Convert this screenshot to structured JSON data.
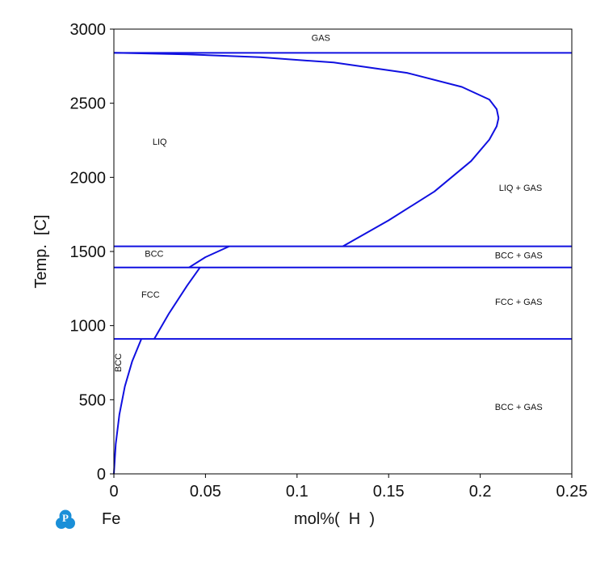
{
  "chart_data": {
    "type": "line",
    "title": "",
    "xlabel": "mol%(  H  )",
    "ylabel": "Temp.  [C]",
    "element_label": "Fe",
    "xlim": [
      0,
      0.25
    ],
    "ylim": [
      0,
      3000
    ],
    "x_ticks": [
      0,
      0.05,
      0.1,
      0.15,
      0.2,
      0.25
    ],
    "x_tick_labels": [
      "0",
      "0.05",
      "0.1",
      "0.15",
      "0.2",
      "0.25"
    ],
    "y_ticks": [
      0,
      500,
      1000,
      1500,
      2000,
      2500,
      3000
    ],
    "y_tick_labels": [
      "0",
      "500",
      "1000",
      "1500",
      "2000",
      "2500",
      "3000"
    ],
    "grid": false,
    "line_color": "#1010e0",
    "horizontal_lines": [
      {
        "name": "gas-boundary",
        "y": 2840
      },
      {
        "name": "bcc-liq-boundary",
        "y": 1535
      },
      {
        "name": "fcc-bcc-boundary",
        "y": 1392
      },
      {
        "name": "bcc-fcc-boundary",
        "y": 910
      }
    ],
    "series": [
      {
        "name": "liquidus-gas",
        "x": [
          0,
          0.04,
          0.08,
          0.12,
          0.16,
          0.19,
          0.205,
          0.209,
          0.21
        ],
        "y": [
          2840,
          2830,
          2810,
          2775,
          2705,
          2610,
          2525,
          2460,
          2400
        ]
      },
      {
        "name": "liquid-solubility",
        "x": [
          0.125,
          0.15,
          0.175,
          0.195,
          0.205,
          0.209,
          0.21
        ],
        "y": [
          1535,
          1710,
          1905,
          2110,
          2255,
          2345,
          2400
        ]
      },
      {
        "name": "bcc-high-solvus",
        "x": [
          0.041,
          0.05,
          0.063
        ],
        "y": [
          1392,
          1462,
          1535
        ]
      },
      {
        "name": "fcc-solvus",
        "x": [
          0.022,
          0.03,
          0.04,
          0.047
        ],
        "y": [
          910,
          1080,
          1270,
          1392
        ]
      },
      {
        "name": "bcc-low-solvus",
        "x": [
          0,
          0.001,
          0.003,
          0.006,
          0.01,
          0.015
        ],
        "y": [
          0,
          200,
          400,
          590,
          760,
          910
        ]
      }
    ],
    "annotations": [
      {
        "text": "GAS",
        "x": 0.113,
        "y": 2920,
        "rotate": 0
      },
      {
        "text": "LIQ",
        "x": 0.025,
        "y": 2220,
        "rotate": 0
      },
      {
        "text": "LIQ + GAS",
        "x": 0.222,
        "y": 1910,
        "rotate": 0
      },
      {
        "text": "BCC",
        "x": 0.022,
        "y": 1465,
        "rotate": 0
      },
      {
        "text": "BCC + GAS",
        "x": 0.221,
        "y": 1455,
        "rotate": 0
      },
      {
        "text": "FCC",
        "x": 0.02,
        "y": 1190,
        "rotate": 0
      },
      {
        "text": "FCC + GAS",
        "x": 0.221,
        "y": 1140,
        "rotate": 0
      },
      {
        "text": "BCC",
        "x": 0.004,
        "y": 750,
        "rotate": -90
      },
      {
        "text": "BCC + GAS",
        "x": 0.221,
        "y": 430,
        "rotate": 0
      }
    ]
  }
}
